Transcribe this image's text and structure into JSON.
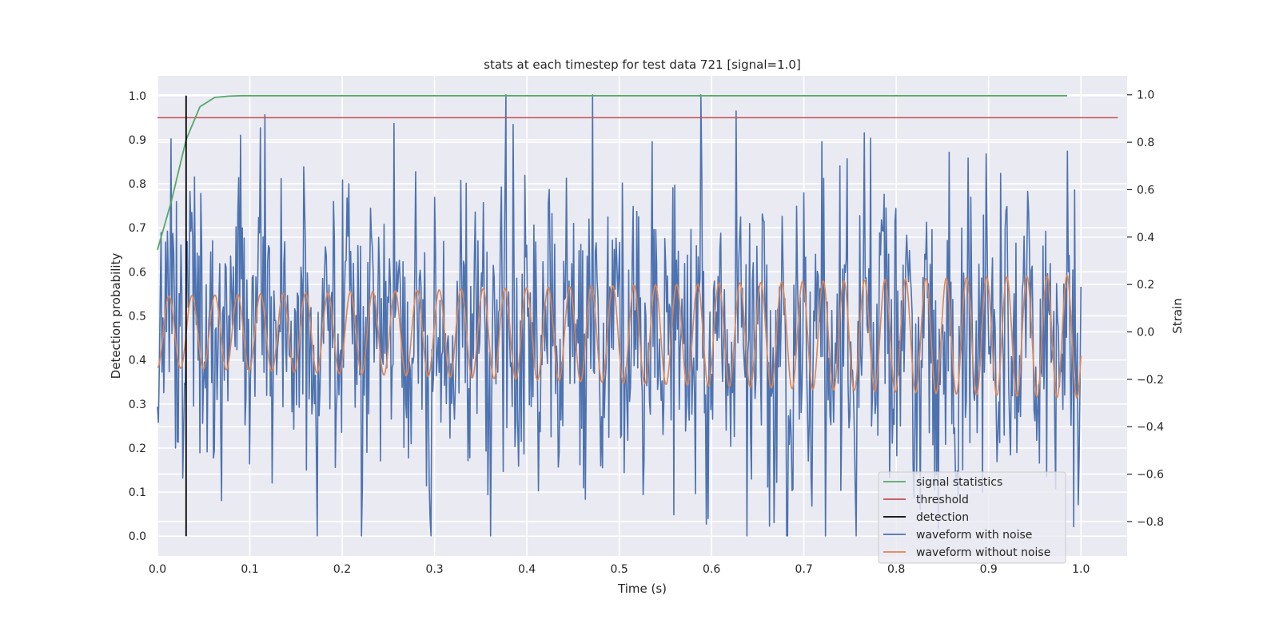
{
  "chart_data": {
    "type": "line",
    "title": "stats at each timestep for test data 721 [signal=1.0]",
    "xlabel": "Time (s)",
    "ylabel_left": "Detection probability",
    "ylabel_right": "Strain",
    "xlim": [
      0.0,
      1.05
    ],
    "ylim_left": [
      -0.045,
      1.045
    ],
    "ylim_right": [
      -0.945,
      1.08
    ],
    "x_ticks": [
      "0.0",
      "0.1",
      "0.2",
      "0.3",
      "0.4",
      "0.5",
      "0.6",
      "0.7",
      "0.8",
      "0.9",
      "1.0"
    ],
    "y_ticks_left": [
      "0.0",
      "0.1",
      "0.2",
      "0.3",
      "0.4",
      "0.5",
      "0.6",
      "0.7",
      "0.8",
      "0.9",
      "1.0"
    ],
    "y_ticks_right": [
      "−0.8",
      "−0.6",
      "−0.4",
      "−0.2",
      "0.0",
      "0.2",
      "0.4",
      "0.6",
      "0.8",
      "1.0"
    ],
    "grid": true,
    "legend_position": "lower-right",
    "series": [
      {
        "name": "signal statistics",
        "axis": "left",
        "color": "#55a868",
        "x": [
          0.0,
          0.015,
          0.031,
          0.046,
          0.062,
          0.077,
          0.092,
          0.108,
          0.985
        ],
        "y": [
          0.65,
          0.76,
          0.9,
          0.975,
          0.996,
          0.999,
          1.0,
          1.0,
          1.0
        ]
      },
      {
        "name": "threshold",
        "axis": "left",
        "color": "#c44e52",
        "x": [
          0.0,
          1.04
        ],
        "y": [
          0.95,
          0.95
        ]
      },
      {
        "name": "detection",
        "axis": "left",
        "color": "#000000",
        "x": [
          0.031,
          0.031
        ],
        "y": [
          0.0,
          1.0
        ]
      },
      {
        "name": "waveform with noise",
        "axis": "right",
        "color": "#4c72b0",
        "n_points": 1024,
        "x_range": [
          0.0,
          1.0
        ],
        "range": [
          -0.86,
          1.0
        ],
        "peak": {
          "x": 0.377,
          "y": 1.0
        },
        "trough": {
          "x": 0.173,
          "y": -0.86
        }
      },
      {
        "name": "waveform without noise",
        "axis": "right",
        "color": "#dd8452",
        "x_range": [
          0.0,
          1.0
        ],
        "cycles": 40,
        "amplitude_start": 0.15,
        "amplitude_end": 0.26,
        "offset_start": 0.0,
        "offset_end": -0.02
      }
    ]
  }
}
